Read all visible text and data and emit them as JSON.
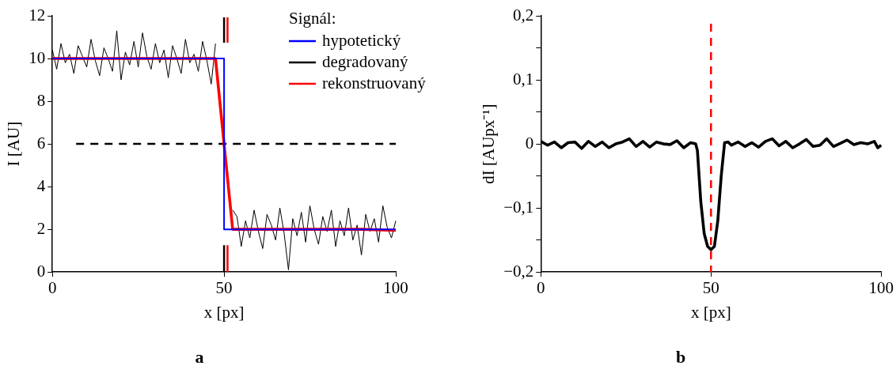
{
  "chart_data": [
    {
      "type": "line",
      "title": "a",
      "xlabel": "x [px]",
      "ylabel": "I [AU]",
      "legend_title": "Signál:",
      "legend": "top right",
      "grid": false,
      "marker": "none",
      "xlim": [
        0,
        100
      ],
      "xticks": [
        0,
        50,
        100
      ],
      "ylim": [
        0,
        12
      ],
      "yticks": [
        0,
        2,
        4,
        6,
        8,
        10,
        12
      ],
      "series": [
        {
          "name": "hypotetický",
          "color": "#0000ff",
          "x": [
            0,
            50,
            50,
            100
          ],
          "values": [
            10,
            10,
            2,
            2
          ]
        },
        {
          "name": "degradovaný",
          "color": "#000000",
          "x": [
            0,
            1.25,
            2.5,
            3.75,
            5,
            6.25,
            7.5,
            8.75,
            10,
            11.25,
            12.5,
            13.75,
            15,
            16.25,
            17.5,
            18.75,
            20,
            21.25,
            22.5,
            23.75,
            25,
            26.25,
            27.5,
            28.75,
            30,
            31.25,
            32.5,
            33.75,
            35,
            36.25,
            37.5,
            38.75,
            40,
            41.25,
            42.5,
            43.75,
            45,
            46.25,
            47.5,
            48.75,
            50,
            51.25,
            52.5,
            53.75,
            55,
            56.25,
            57.5,
            58.75,
            60,
            61.25,
            62.5,
            63.75,
            65,
            66.25,
            67.5,
            68.75,
            70,
            71.25,
            72.5,
            73.75,
            75,
            76.25,
            77.5,
            78.75,
            80,
            81.25,
            82.5,
            83.75,
            85,
            86.25,
            87.5,
            88.75,
            90,
            91.25,
            92.5,
            93.75,
            95,
            96.25,
            97.5,
            98.75,
            100
          ],
          "values": [
            10.4,
            9.5,
            10.7,
            9.8,
            10.2,
            9.3,
            10.6,
            10.1,
            9.6,
            10.9,
            9.9,
            9.2,
            10.5,
            10.0,
            9.4,
            11.3,
            9.0,
            10.3,
            9.7,
            10.8,
            9.6,
            11.2,
            10.1,
            9.5,
            10.7,
            9.8,
            10.4,
            9.1,
            10.6,
            10.0,
            9.3,
            10.9,
            9.8,
            10.2,
            9.4,
            10.8,
            9.9,
            8.8,
            10.7,
            null,
            null,
            null,
            2.9,
            2.6,
            1.2,
            2.4,
            1.6,
            2.9,
            1.9,
            1.1,
            2.7,
            2.2,
            1.5,
            3.0,
            1.8,
            0.1,
            2.5,
            1.7,
            2.8,
            1.4,
            3.1,
            2.0,
            1.3,
            2.6,
            1.9,
            2.9,
            1.2,
            2.4,
            1.7,
            3.0,
            1.5,
            2.2,
            0.8,
            2.7,
            1.9,
            2.5,
            1.4,
            3.1,
            2.1,
            1.6,
            2.4
          ]
        },
        {
          "name": "rekonstruovaný",
          "color": "#ff0000",
          "x": [
            0,
            10,
            20,
            30,
            40,
            47.5,
            50,
            52.5,
            60,
            70,
            80,
            90,
            100
          ],
          "values": [
            10,
            10,
            10,
            10,
            10,
            10,
            6,
            2,
            2,
            2,
            2,
            2,
            1.95
          ]
        }
      ],
      "ref_lines": [
        {
          "axis": "y",
          "value": 6,
          "color": "#000000",
          "line_style": "dashed"
        },
        {
          "axis": "x",
          "value": 50,
          "color": "#000000",
          "line_style": "solid"
        },
        {
          "axis": "x",
          "value": 51,
          "color": "#ff0000",
          "line_style": "solid"
        }
      ]
    },
    {
      "type": "line",
      "title": "b",
      "xlabel": "x [px]",
      "ylabel": "dI [AUpx⁻¹]",
      "legend": false,
      "grid": false,
      "marker": "none",
      "xlim": [
        0,
        100
      ],
      "xticks": [
        0,
        50,
        100
      ],
      "ylim": [
        -0.2,
        0.2
      ],
      "yticks": [
        {
          "value": -0.2,
          "label": "−0,2"
        },
        {
          "value": -0.15,
          "label": null
        },
        {
          "value": -0.1,
          "label": "−0,1"
        },
        {
          "value": -0.05,
          "label": null
        },
        {
          "value": 0,
          "label": "0"
        },
        {
          "value": 0.05,
          "label": null
        },
        {
          "value": 0.1,
          "label": "0,1"
        },
        {
          "value": 0.15,
          "label": null
        },
        {
          "value": 0.2,
          "label": "0,2"
        }
      ],
      "series": [
        {
          "color": "#000000",
          "x": [
            0,
            2,
            4,
            6,
            8,
            10,
            12,
            14,
            16,
            18,
            20,
            22,
            24,
            26,
            28,
            30,
            32,
            34,
            36,
            38,
            40,
            42,
            44,
            45.5,
            46,
            47,
            48,
            49,
            50,
            51,
            52,
            53,
            54,
            55,
            56,
            58,
            60,
            62,
            64,
            66,
            68,
            70,
            72,
            74,
            76,
            78,
            80,
            82,
            84,
            86,
            88,
            90,
            92,
            94,
            96,
            98,
            99,
            100
          ],
          "values": [
            0.004,
            -0.002,
            0.003,
            -0.006,
            0.002,
            0.003,
            -0.007,
            0.004,
            -0.004,
            0.003,
            -0.006,
            0,
            0.003,
            0.008,
            -0.004,
            0.004,
            -0.005,
            0.003,
            0,
            -0.001,
            0.005,
            -0.006,
            0.002,
            0,
            -0.01,
            -0.09,
            -0.14,
            -0.16,
            -0.165,
            -0.16,
            -0.12,
            -0.05,
            0.002,
            0.003,
            -0.002,
            0.003,
            -0.004,
            0.002,
            -0.005,
            0.004,
            0.008,
            -0.003,
            0.004,
            -0.006,
            0,
            0.007,
            -0.004,
            -0.002,
            0.008,
            -0.004,
            0.001,
            0.006,
            -0.001,
            0.002,
            0,
            0.004,
            -0.006,
            -0.002
          ]
        }
      ],
      "ref_lines": [
        {
          "axis": "x",
          "value": 50,
          "color": "#ff0000",
          "line_style": "dashed"
        }
      ]
    }
  ]
}
